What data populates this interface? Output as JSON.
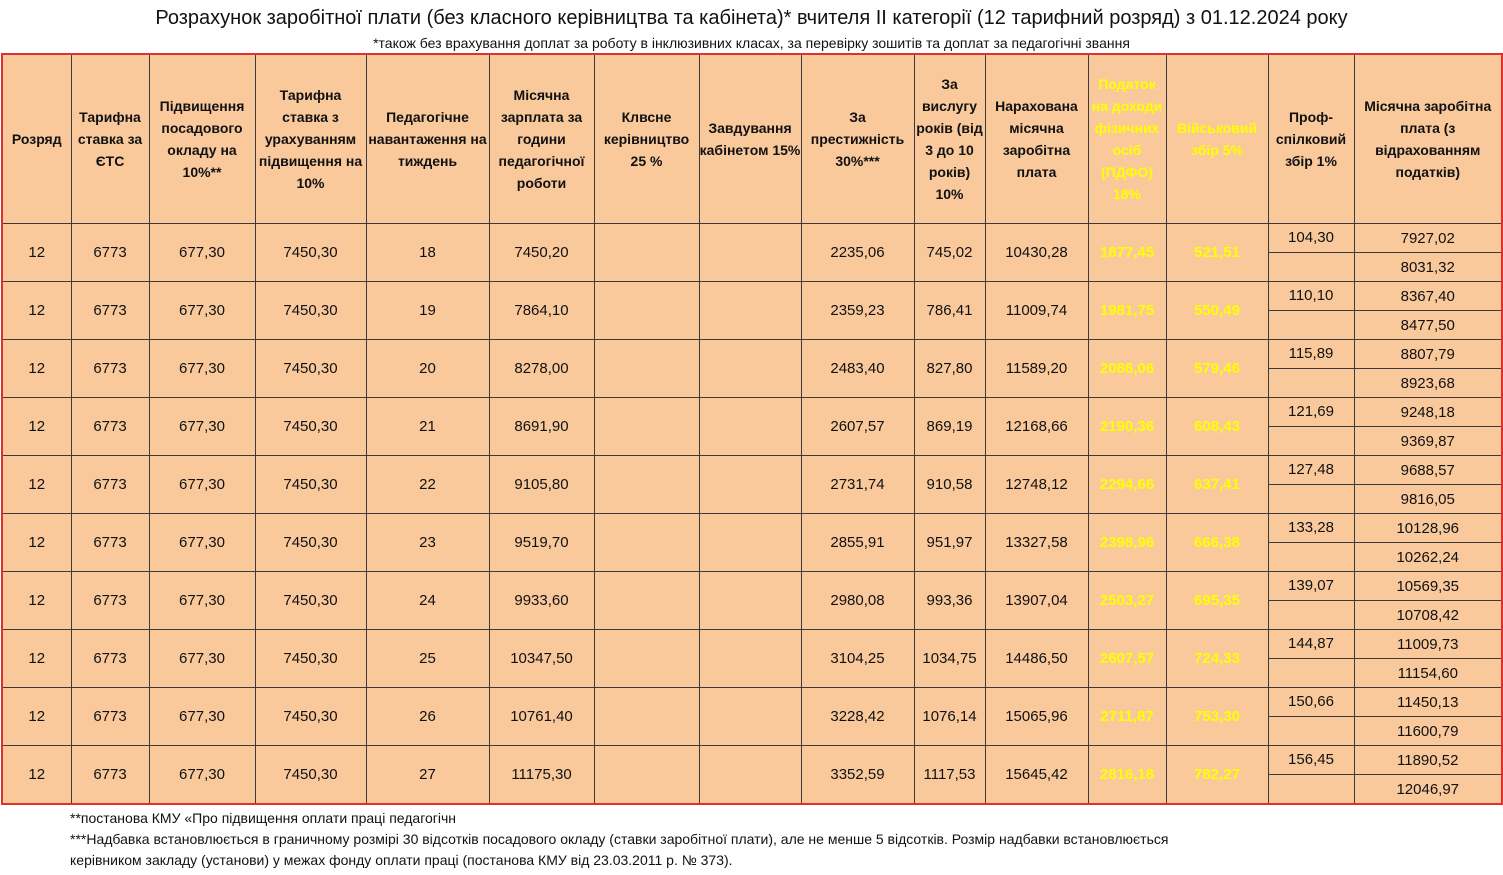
{
  "title": "Розрахунок заробітної плати (без класного керівництва та кабінета)* вчителя ІІ категорії (12 тарифний розряд) з 01.12.2024 року",
  "subtitle": "*також без врахування доплат за роботу в інклюзивних класах, за перевірку зошитів та доплат за педагогічні звання",
  "headers": {
    "rank": "Розряд",
    "rate": "Тарифна ставка за ЄТС",
    "increase": "Підвищення посадового окладу на 10%**",
    "rate_increased": "Тарифна ставка з урахуванням підвищення на 10%",
    "load": "Педагогічне навантаження на тиждень",
    "monthly": "Місячна зарплата за години педагогічної роботи",
    "class": "Клвсне керівництво 25 %",
    "cabinet": "Завдування кабінетом 15%",
    "prestige": "За престижність 30%***",
    "seniority": "За вислугу років (від 3 до 10 років) 10%",
    "accrued": "Нарахована місячна заробітна плата",
    "pit": "Податок на доходи фізичних осіб (ПДФО) 18%",
    "military": "Військовий збір 5%",
    "union": "Проф-спілковий збір 1%",
    "net": "Місячна заробітна плата (з відрахованням податків)"
  },
  "rows": [
    {
      "rank": "12",
      "rate": "6773",
      "increase": "677,30",
      "rate_increased": "7450,30",
      "load": "18",
      "monthly": "7450,20",
      "class": "",
      "cabinet": "",
      "prestige": "2235,06",
      "seniority": "745,02",
      "accrued": "10430,28",
      "pit": "1877,45",
      "military": "521,51",
      "union": "104,30",
      "net1": "7927,02",
      "net2": "8031,32"
    },
    {
      "rank": "12",
      "rate": "6773",
      "increase": "677,30",
      "rate_increased": "7450,30",
      "load": "19",
      "monthly": "7864,10",
      "class": "",
      "cabinet": "",
      "prestige": "2359,23",
      "seniority": "786,41",
      "accrued": "11009,74",
      "pit": "1981,75",
      "military": "550,49",
      "union": "110,10",
      "net1": "8367,40",
      "net2": "8477,50"
    },
    {
      "rank": "12",
      "rate": "6773",
      "increase": "677,30",
      "rate_increased": "7450,30",
      "load": "20",
      "monthly": "8278,00",
      "class": "",
      "cabinet": "",
      "prestige": "2483,40",
      "seniority": "827,80",
      "accrued": "11589,20",
      "pit": "2086,06",
      "military": "579,46",
      "union": "115,89",
      "net1": "8807,79",
      "net2": "8923,68"
    },
    {
      "rank": "12",
      "rate": "6773",
      "increase": "677,30",
      "rate_increased": "7450,30",
      "load": "21",
      "monthly": "8691,90",
      "class": "",
      "cabinet": "",
      "prestige": "2607,57",
      "seniority": "869,19",
      "accrued": "12168,66",
      "pit": "2190,36",
      "military": "608,43",
      "union": "121,69",
      "net1": "9248,18",
      "net2": "9369,87"
    },
    {
      "rank": "12",
      "rate": "6773",
      "increase": "677,30",
      "rate_increased": "7450,30",
      "load": "22",
      "monthly": "9105,80",
      "class": "",
      "cabinet": "",
      "prestige": "2731,74",
      "seniority": "910,58",
      "accrued": "12748,12",
      "pit": "2294,66",
      "military": "637,41",
      "union": "127,48",
      "net1": "9688,57",
      "net2": "9816,05"
    },
    {
      "rank": "12",
      "rate": "6773",
      "increase": "677,30",
      "rate_increased": "7450,30",
      "load": "23",
      "monthly": "9519,70",
      "class": "",
      "cabinet": "",
      "prestige": "2855,91",
      "seniority": "951,97",
      "accrued": "13327,58",
      "pit": "2398,96",
      "military": "666,38",
      "union": "133,28",
      "net1": "10128,96",
      "net2": "10262,24"
    },
    {
      "rank": "12",
      "rate": "6773",
      "increase": "677,30",
      "rate_increased": "7450,30",
      "load": "24",
      "monthly": "9933,60",
      "class": "",
      "cabinet": "",
      "prestige": "2980,08",
      "seniority": "993,36",
      "accrued": "13907,04",
      "pit": "2503,27",
      "military": "695,35",
      "union": "139,07",
      "net1": "10569,35",
      "net2": "10708,42"
    },
    {
      "rank": "12",
      "rate": "6773",
      "increase": "677,30",
      "rate_increased": "7450,30",
      "load": "25",
      "monthly": "10347,50",
      "class": "",
      "cabinet": "",
      "prestige": "3104,25",
      "seniority": "1034,75",
      "accrued": "14486,50",
      "pit": "2607,57",
      "military": "724,33",
      "union": "144,87",
      "net1": "11009,73",
      "net2": "11154,60"
    },
    {
      "rank": "12",
      "rate": "6773",
      "increase": "677,30",
      "rate_increased": "7450,30",
      "load": "26",
      "monthly": "10761,40",
      "class": "",
      "cabinet": "",
      "prestige": "3228,42",
      "seniority": "1076,14",
      "accrued": "15065,96",
      "pit": "2711,87",
      "military": "753,30",
      "union": "150,66",
      "net1": "11450,13",
      "net2": "11600,79"
    },
    {
      "rank": "12",
      "rate": "6773",
      "increase": "677,30",
      "rate_increased": "7450,30",
      "load": "27",
      "monthly": "11175,30",
      "class": "",
      "cabinet": "",
      "prestige": "3352,59",
      "seniority": "1117,53",
      "accrued": "15645,42",
      "pit": "2816,18",
      "military": "782,27",
      "union": "156,45",
      "net1": "11890,52",
      "net2": "12046,97"
    }
  ],
  "footnotes": [
    "**постанова КМУ «Про підвищення оплати праці педагогічн",
    "***Надбавка встановлюється в граничному розмірі 30 відсотків посадового окладу (ставки заробітної плати), але не менше 5 відсотків. Розмір надбавки встановлюється",
    "керівником закладу (установи) у межах фонду оплати праці (постанова КМУ від 23.03.2011 р. № 373)."
  ],
  "colors": {
    "body_fill": "#f9c99c",
    "pit_fill": "#1f6fbf",
    "military_fill": "#1fb0ea",
    "highlight_yellow": "#ffff00",
    "net_green": "#3cb34a",
    "table_border": "#e03030"
  }
}
